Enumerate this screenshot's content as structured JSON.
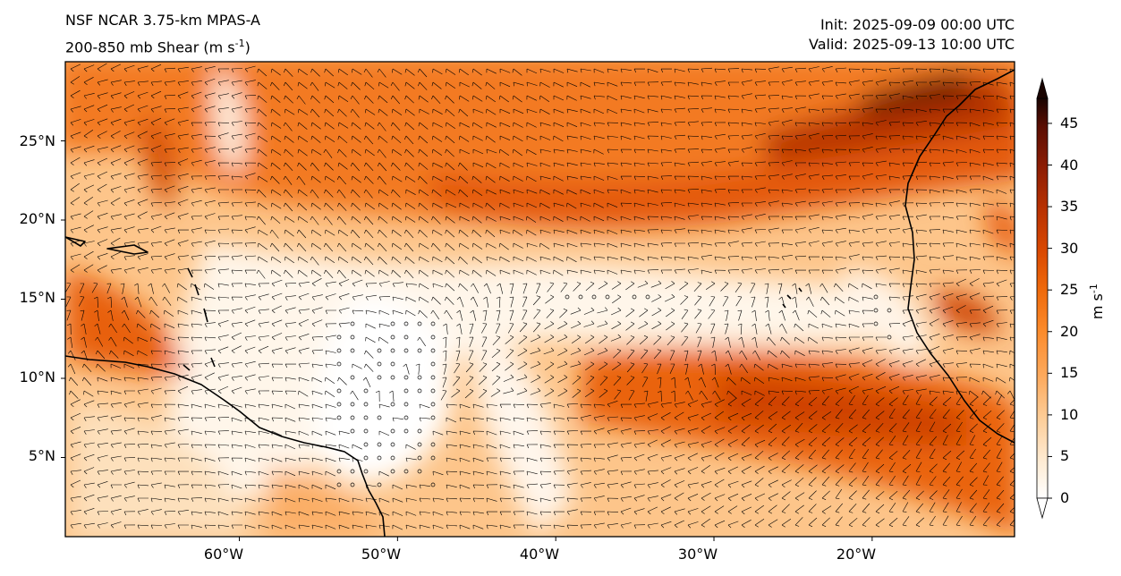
{
  "header": {
    "model": "NSF NCAR 3.75-km MPAS-A",
    "field": "200-850 mb Shear (m s",
    "field_sup": "-1",
    "field_end": ")",
    "init": "Init: 2025-09-09 00:00 UTC",
    "valid": "Valid: 2025-09-13 10:00 UTC"
  },
  "map": {
    "lat_labels": [
      "25°N",
      "20°N",
      "15°N",
      "10°N",
      "5°N"
    ],
    "lon_labels": [
      "60°W",
      "50°W",
      "40°W",
      "30°W",
      "20°W"
    ],
    "lon_range": [
      -71,
      -11
    ],
    "lat_range": [
      0,
      30
    ],
    "lat_ticks": [
      25,
      20,
      15,
      10,
      5
    ],
    "lon_ticks": [
      -60,
      -50,
      -40,
      -30,
      -20
    ]
  },
  "colorbar": {
    "ticks": [
      "0",
      "5",
      "10",
      "15",
      "20",
      "25",
      "30",
      "35",
      "40",
      "45"
    ],
    "unit": "m s",
    "unit_sup": "-1",
    "range": [
      0,
      48
    ],
    "colors": [
      "#ffffff",
      "#fee9cf",
      "#fdcd98",
      "#fdab5f",
      "#fb8a2b",
      "#ef6a0c",
      "#d94801",
      "#b63002",
      "#8c1d04",
      "#5a0e03",
      "#1a0401"
    ]
  }
}
